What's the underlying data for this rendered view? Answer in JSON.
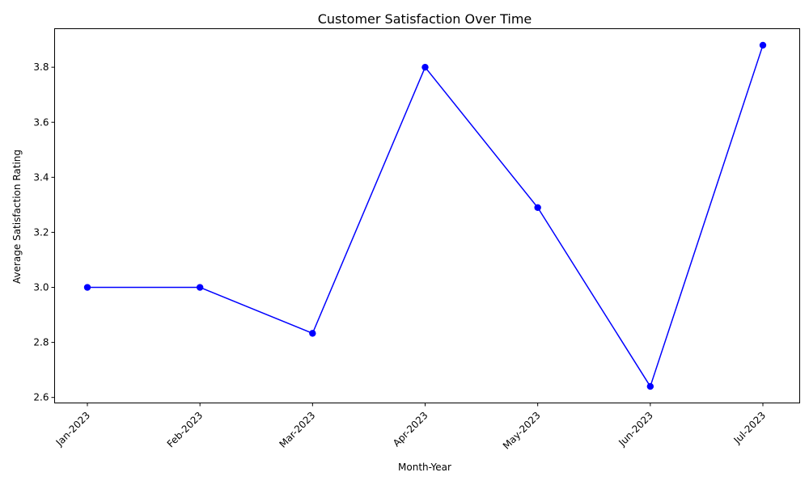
{
  "chart_data": {
    "type": "line",
    "title": "Customer Satisfaction Over Time",
    "xlabel": "Month-Year",
    "ylabel": "Average Satisfaction Rating",
    "categories": [
      "Jan-2023",
      "Feb-2023",
      "Mar-2023",
      "Apr-2023",
      "May-2023",
      "Jun-2023",
      "Jul-2023"
    ],
    "series": [
      {
        "values": [
          3.0,
          3.0,
          2.833,
          3.8,
          3.29,
          2.64,
          3.88
        ],
        "color": "#0000ff",
        "marker": "circle"
      }
    ],
    "ylim": [
      2.58,
      3.94
    ],
    "yticks": [
      2.6,
      2.8,
      3.0,
      3.2,
      3.4,
      3.6,
      3.8
    ],
    "ytick_labels": [
      "2.6",
      "2.8",
      "3.0",
      "3.2",
      "3.4",
      "3.6",
      "3.8"
    ],
    "xtick_rotation": "45 degrees",
    "grid": false,
    "legend": "none"
  }
}
